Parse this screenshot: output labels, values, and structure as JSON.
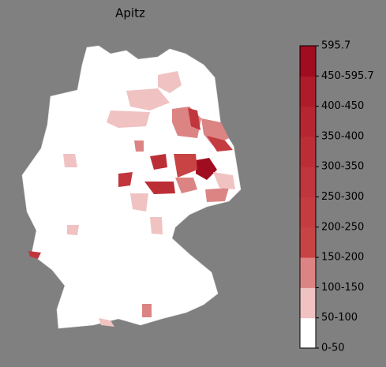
{
  "title": "Apitz",
  "legend": {
    "labels": [
      "0-50",
      "50-100",
      "100-150",
      "150-200",
      "200-250",
      "250-300",
      "300-350",
      "350-400",
      "400-450",
      "450-595.7",
      "595.7"
    ],
    "colors": [
      "#ffffff",
      "#f0c2c2",
      "#dc8484",
      "#c84444",
      "#c43c40",
      "#c0363c",
      "#bc2e36",
      "#b62630",
      "#ae1c2a",
      "#a00c20"
    ]
  }
}
